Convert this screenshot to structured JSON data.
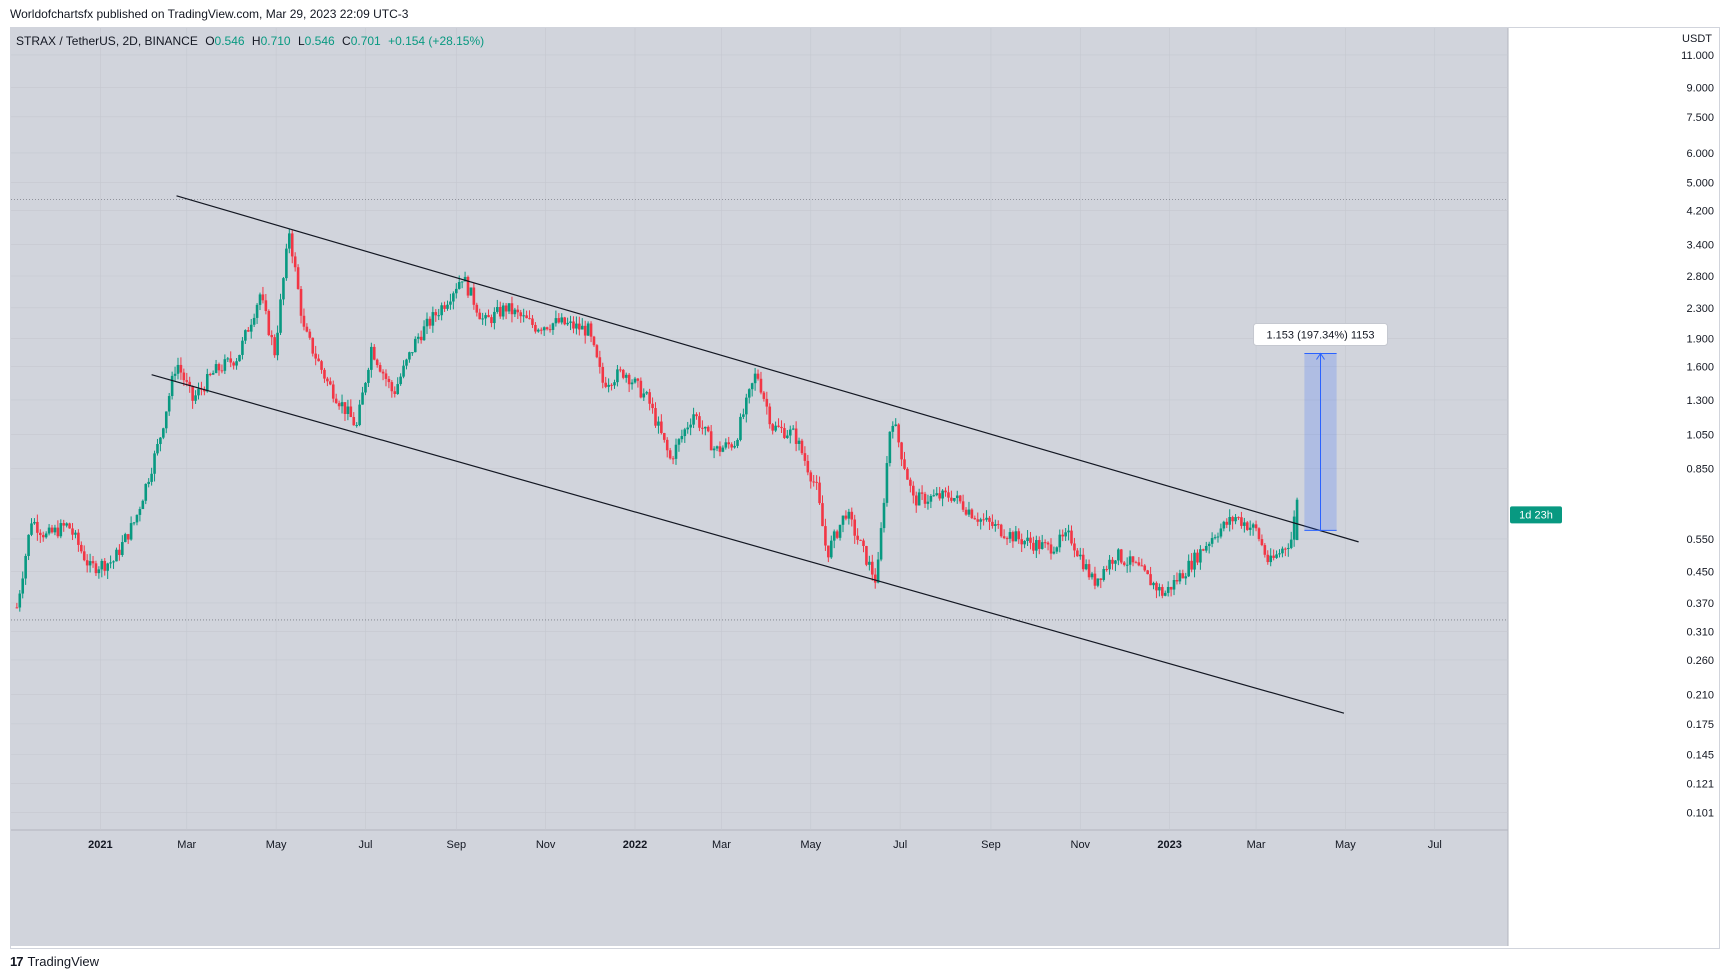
{
  "attribution": "Worldofchartsfx published on TradingView.com, Mar 29, 2023 22:09 UTC-3",
  "legend": {
    "symbol": "STRAX / TetherUS, 2D, BINANCE",
    "open_label": "O",
    "open": "0.546",
    "high_label": "H",
    "high": "0.710",
    "low_label": "L",
    "low": "0.546",
    "close_label": "C",
    "close": "0.701",
    "change": "+0.154 (+28.15%)"
  },
  "footer": {
    "logo": "17",
    "brand": "TradingView"
  },
  "colors": {
    "up": "#089981",
    "down": "#f23645",
    "background": "#d1d4dc",
    "line": "#131722",
    "measure": "#2962ff",
    "badge": "#089981"
  },
  "chart_data": {
    "type": "candlestick",
    "y_scale": "log",
    "y_unit": "USDT",
    "y_ticks": [
      "11.000",
      "9.000",
      "7.500",
      "6.000",
      "5.000",
      "4.200",
      "3.400",
      "2.800",
      "2.300",
      "1.900",
      "1.600",
      "1.300",
      "1.050",
      "0.850",
      "0.550",
      "0.450",
      "0.370",
      "0.310",
      "0.260",
      "0.210",
      "0.175",
      "0.145",
      "0.121",
      "0.101"
    ],
    "y_tick_values": [
      11.0,
      9.0,
      7.5,
      6.0,
      5.0,
      4.2,
      3.4,
      2.8,
      2.3,
      1.9,
      1.6,
      1.3,
      1.05,
      0.85,
      0.55,
      0.45,
      0.37,
      0.31,
      0.26,
      0.21,
      0.175,
      0.145,
      0.121,
      0.101
    ],
    "x_ticks": [
      {
        "label": "2021",
        "date": "2021-01-01",
        "bold": true
      },
      {
        "label": "Mar",
        "date": "2021-03-01",
        "bold": false
      },
      {
        "label": "May",
        "date": "2021-05-01",
        "bold": false
      },
      {
        "label": "Jul",
        "date": "2021-07-01",
        "bold": false
      },
      {
        "label": "Sep",
        "date": "2021-09-01",
        "bold": false
      },
      {
        "label": "Nov",
        "date": "2021-11-01",
        "bold": false
      },
      {
        "label": "2022",
        "date": "2022-01-01",
        "bold": true
      },
      {
        "label": "Mar",
        "date": "2022-03-01",
        "bold": false
      },
      {
        "label": "May",
        "date": "2022-05-01",
        "bold": false
      },
      {
        "label": "Jul",
        "date": "2022-07-01",
        "bold": false
      },
      {
        "label": "Sep",
        "date": "2022-09-01",
        "bold": false
      },
      {
        "label": "Nov",
        "date": "2022-11-01",
        "bold": false
      },
      {
        "label": "2023",
        "date": "2023-01-01",
        "bold": true
      },
      {
        "label": "Mar",
        "date": "2023-03-01",
        "bold": false
      },
      {
        "label": "May",
        "date": "2023-05-01",
        "bold": false
      },
      {
        "label": "Jul",
        "date": "2023-07-01",
        "bold": false
      }
    ],
    "price_path": [
      [
        "2020-11-05",
        0.36
      ],
      [
        "2020-11-15",
        0.62
      ],
      [
        "2020-11-25",
        0.56
      ],
      [
        "2020-12-10",
        0.6
      ],
      [
        "2020-12-25",
        0.46
      ],
      [
        "2021-01-10",
        0.48
      ],
      [
        "2021-01-25",
        0.62
      ],
      [
        "2021-02-10",
        1.0
      ],
      [
        "2021-02-22",
        1.65
      ],
      [
        "2021-03-05",
        1.3
      ],
      [
        "2021-03-20",
        1.55
      ],
      [
        "2021-04-05",
        1.7
      ],
      [
        "2021-04-20",
        2.5
      ],
      [
        "2021-04-30",
        1.75
      ],
      [
        "2021-05-10",
        3.7
      ],
      [
        "2021-05-20",
        2.0
      ],
      [
        "2021-06-05",
        1.45
      ],
      [
        "2021-06-25",
        1.1
      ],
      [
        "2021-07-05",
        1.8
      ],
      [
        "2021-07-20",
        1.35
      ],
      [
        "2021-08-05",
        1.9
      ],
      [
        "2021-08-25",
        2.4
      ],
      [
        "2021-09-05",
        2.8
      ],
      [
        "2021-09-20",
        2.1
      ],
      [
        "2021-10-05",
        2.3
      ],
      [
        "2021-10-25",
        2.05
      ],
      [
        "2021-11-10",
        2.1
      ],
      [
        "2021-11-30",
        2.0
      ],
      [
        "2021-12-10",
        1.45
      ],
      [
        "2021-12-25",
        1.55
      ],
      [
        "2022-01-10",
        1.3
      ],
      [
        "2022-01-25",
        0.9
      ],
      [
        "2022-02-10",
        1.2
      ],
      [
        "2022-02-25",
        0.95
      ],
      [
        "2022-03-10",
        1.0
      ],
      [
        "2022-03-25",
        1.55
      ],
      [
        "2022-04-05",
        1.1
      ],
      [
        "2022-04-20",
        1.05
      ],
      [
        "2022-05-05",
        0.75
      ],
      [
        "2022-05-12",
        0.5
      ],
      [
        "2022-05-25",
        0.65
      ],
      [
        "2022-06-15",
        0.42
      ],
      [
        "2022-06-25",
        1.2
      ],
      [
        "2022-07-10",
        0.7
      ],
      [
        "2022-08-05",
        0.72
      ],
      [
        "2022-08-25",
        0.62
      ],
      [
        "2022-09-20",
        0.55
      ],
      [
        "2022-10-10",
        0.52
      ],
      [
        "2022-10-25",
        0.56
      ],
      [
        "2022-11-10",
        0.42
      ],
      [
        "2022-11-25",
        0.5
      ],
      [
        "2022-12-10",
        0.46
      ],
      [
        "2022-12-28",
        0.39
      ],
      [
        "2023-01-15",
        0.47
      ],
      [
        "2023-02-01",
        0.57
      ],
      [
        "2023-02-15",
        0.63
      ],
      [
        "2023-03-01",
        0.58
      ],
      [
        "2023-03-10",
        0.47
      ],
      [
        "2023-03-25",
        0.55
      ],
      [
        "2023-03-29",
        0.7
      ]
    ],
    "last_candle": {
      "date": "2023-03-29",
      "open": 0.546,
      "high": 0.71,
      "low": 0.546,
      "close": 0.701
    },
    "trendlines": [
      {
        "name": "upper-channel",
        "from": {
          "date": "2021-02-22",
          "price": 4.6
        },
        "to": {
          "date": "2023-05-10",
          "price": 0.54
        }
      },
      {
        "name": "lower-channel",
        "from": {
          "date": "2021-02-05",
          "price": 1.52
        },
        "to": {
          "date": "2023-04-30",
          "price": 0.187
        }
      }
    ],
    "horizontal_levels": [
      4.5,
      0.333
    ],
    "measurement": {
      "from_date": "2023-04-03",
      "to_date": "2023-04-25",
      "low": 0.58,
      "high": 1.733,
      "label": "1.153 (197.34%) 1153"
    },
    "price_badge": {
      "text": "1d 23h",
      "price": 0.64
    },
    "grid": true
  }
}
